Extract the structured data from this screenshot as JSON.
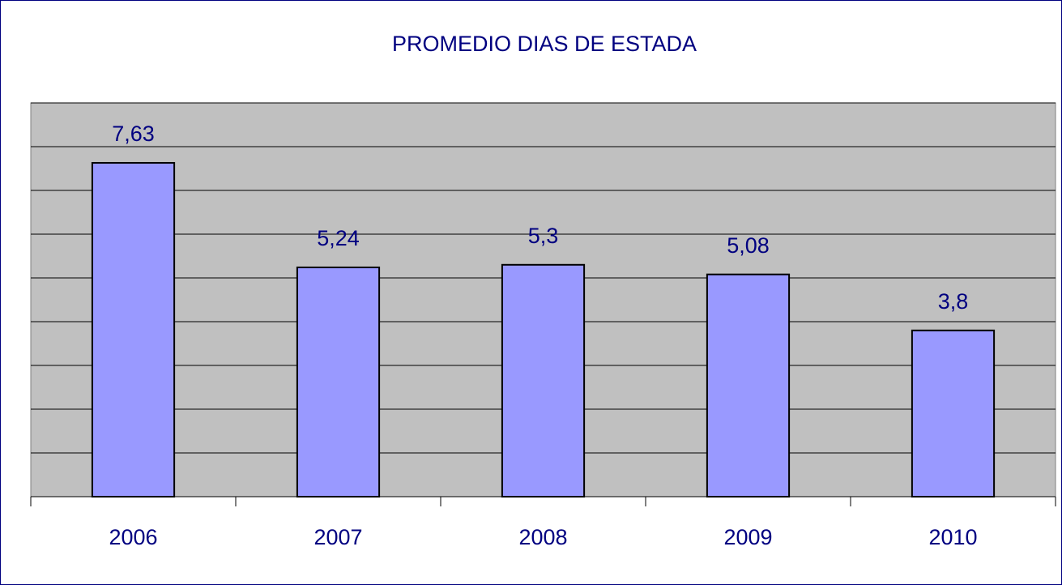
{
  "chart_data": {
    "type": "bar",
    "title": "PROMEDIO DIAS DE ESTADA",
    "categories": [
      "2006",
      "2007",
      "2008",
      "2009",
      "2010"
    ],
    "values": [
      7.63,
      5.24,
      5.3,
      5.08,
      3.8
    ],
    "value_labels": [
      "7,63",
      "5,24",
      "5,3",
      "5,08",
      "3,8"
    ],
    "color": "#9999ff",
    "ylim": [
      0,
      9
    ],
    "yticks": [
      0,
      1,
      2,
      3,
      4,
      5,
      6,
      7,
      8,
      9
    ],
    "grid": true
  }
}
